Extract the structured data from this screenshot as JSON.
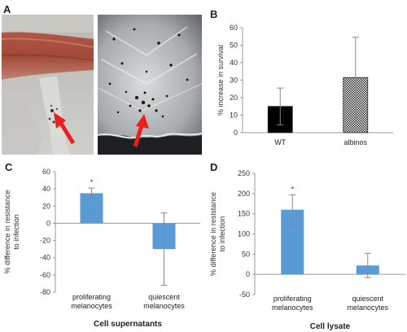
{
  "panels": {
    "a": "A",
    "b": "B",
    "c": "C",
    "d": "D"
  },
  "photos": {
    "left": "zebrafish-tissue-red-stain",
    "right": "zebrafish-tissue-melanocytes",
    "arrow_color": "#e8201e"
  },
  "chart_data": [
    {
      "id": "B",
      "type": "bar",
      "categories": [
        "WT",
        "albinos"
      ],
      "values": [
        15,
        31.5
      ],
      "errors": [
        10.5,
        23
      ],
      "fills": [
        "#000000",
        "pattern-checker"
      ],
      "ylabel": "% increase in survival",
      "ylim": [
        0,
        60
      ],
      "yticks": [
        0,
        10,
        20,
        30,
        40,
        50,
        60
      ],
      "grid": false
    },
    {
      "id": "C",
      "type": "bar",
      "categories": [
        "proliferating melanocytes",
        "quiescent melanocytes"
      ],
      "category_lines": [
        [
          "proliferating",
          "melanocytes"
        ],
        [
          "quiescent",
          "melanocytes"
        ]
      ],
      "values": [
        35,
        -30
      ],
      "errors": [
        6,
        42
      ],
      "significance": [
        "*",
        ""
      ],
      "color": "#5b9bd5",
      "ylabel": "% difference in resistance to infection",
      "ylabel_lines": [
        "% difference in resistance",
        "to infection"
      ],
      "xlabel": "Cell supernatants",
      "ylim": [
        -80,
        60
      ],
      "yticks": [
        -80,
        -60,
        -40,
        -20,
        0,
        20,
        40,
        60
      ],
      "grid": false
    },
    {
      "id": "D",
      "type": "bar",
      "categories": [
        "proliferating melanocytes",
        "quiescent melanocytes"
      ],
      "category_lines": [
        [
          "proliferating",
          "melanocytes"
        ],
        [
          "quiescent",
          "melanocytes"
        ]
      ],
      "values": [
        160,
        22
      ],
      "errors": [
        37,
        30
      ],
      "significance": [
        "*",
        ""
      ],
      "color": "#5b9bd5",
      "ylabel": "% difference in resistance to infection",
      "ylabel_lines": [
        "% difference in resistance",
        "to infection"
      ],
      "xlabel": "Cell lysate",
      "ylim": [
        -50,
        250
      ],
      "yticks": [
        -50,
        0,
        50,
        100,
        150,
        200,
        250
      ],
      "grid": false
    }
  ]
}
